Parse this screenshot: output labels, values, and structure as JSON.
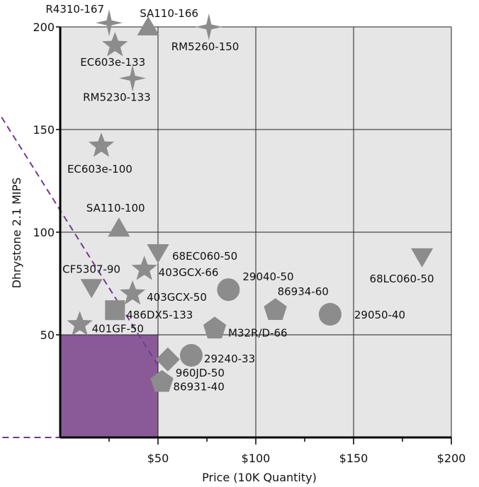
{
  "chart_data": {
    "type": "scatter",
    "title": "",
    "xlabel": "Price (10K Quantity)",
    "ylabel": "Dhrystone 2.1 MIPS",
    "xlim": [
      0,
      200
    ],
    "ylim": [
      0,
      200
    ],
    "x_ticks": [
      50,
      100,
      150,
      200
    ],
    "x_tick_labels": [
      "$50",
      "$100",
      "$150",
      "$200"
    ],
    "y_ticks": [
      50,
      100,
      150,
      200
    ],
    "y_tick_labels": [
      "50",
      "100",
      "150",
      "200"
    ],
    "grid": true,
    "colors": {
      "plot_bg": "#e6e6e6",
      "marker": "#8c8c8c",
      "highlight": "#8a5a98",
      "frontier": "#6e3d8a",
      "grid": "#222222"
    },
    "highlight_region": {
      "x": [
        0,
        50
      ],
      "y": [
        0,
        50
      ]
    },
    "frontier_lines": [
      {
        "from": [
          -35,
          0
        ],
        "to": [
          50,
          0
        ]
      },
      {
        "from": [
          -30,
          156
        ],
        "to": [
          50,
          35
        ]
      }
    ],
    "points": [
      {
        "label": "R4310-167",
        "x": 25,
        "y": 202,
        "marker": "star4"
      },
      {
        "label": "SA110-166",
        "x": 45,
        "y": 200,
        "marker": "triangle-up"
      },
      {
        "label": "RM5260-150",
        "x": 76,
        "y": 200,
        "marker": "star4"
      },
      {
        "label": "EC603e-133",
        "x": 28,
        "y": 191,
        "marker": "star5"
      },
      {
        "label": "RM5230-133",
        "x": 37,
        "y": 175,
        "marker": "star4"
      },
      {
        "label": "EC603e-100",
        "x": 21,
        "y": 142,
        "marker": "star5"
      },
      {
        "label": "SA110-100",
        "x": 30,
        "y": 102,
        "marker": "triangle-up"
      },
      {
        "label": "68EC060-50",
        "x": 50,
        "y": 90,
        "marker": "triangle-down"
      },
      {
        "label": "CF5307-90",
        "x": 16,
        "y": 73,
        "marker": "triangle-down"
      },
      {
        "label": "403GCX-66",
        "x": 43,
        "y": 82,
        "marker": "star5"
      },
      {
        "label": "403GCX-50",
        "x": 37,
        "y": 70,
        "marker": "star5"
      },
      {
        "label": "486DX5-133",
        "x": 28,
        "y": 62,
        "marker": "square"
      },
      {
        "label": "401GF-50",
        "x": 10,
        "y": 55,
        "marker": "star5"
      },
      {
        "label": "29040-50",
        "x": 86,
        "y": 72,
        "marker": "circle"
      },
      {
        "label": "86934-60",
        "x": 110,
        "y": 62,
        "marker": "pentagon"
      },
      {
        "label": "29050-40",
        "x": 138,
        "y": 60,
        "marker": "circle"
      },
      {
        "label": "68LC060-50",
        "x": 185,
        "y": 88,
        "marker": "triangle-down"
      },
      {
        "label": "M32R/D-66",
        "x": 79,
        "y": 53,
        "marker": "pentagon"
      },
      {
        "label": "29240-33",
        "x": 67,
        "y": 40,
        "marker": "circle"
      },
      {
        "label": "960JD-50",
        "x": 55,
        "y": 38,
        "marker": "diamond"
      },
      {
        "label": "86931-40",
        "x": 52,
        "y": 27,
        "marker": "pentagon"
      }
    ]
  }
}
